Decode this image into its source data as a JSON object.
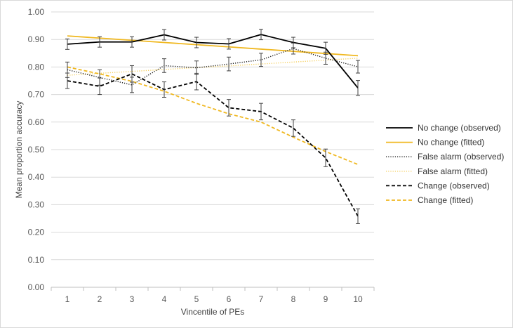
{
  "chart_data": {
    "type": "line",
    "title": "",
    "xlabel": "Vincentile of PEs",
    "ylabel": "Mean proportion accuracy",
    "x": [
      1,
      2,
      3,
      4,
      5,
      6,
      7,
      8,
      9,
      10
    ],
    "x_tick_labels": [
      "1",
      "2",
      "3",
      "4",
      "5",
      "6",
      "7",
      "8",
      "9",
      "10"
    ],
    "ylim": [
      0,
      1
    ],
    "y_ticks": [
      0,
      0.1,
      0.2,
      0.3,
      0.4,
      0.5,
      0.6,
      0.7,
      0.8,
      0.9,
      1.0
    ],
    "y_tick_labels": [
      "0.00",
      "0.10",
      "0.20",
      "0.30",
      "0.40",
      "0.50",
      "0.60",
      "0.70",
      "0.80",
      "0.90",
      "1.00"
    ],
    "grid": true,
    "legend_position": "right",
    "series": [
      {
        "name": "No change (observed)",
        "color": "#000000",
        "dash": "solid",
        "values": [
          0.883,
          0.891,
          0.891,
          0.917,
          0.889,
          0.884,
          0.918,
          0.889,
          0.868,
          0.724
        ],
        "errors": [
          0.019,
          0.019,
          0.019,
          0.019,
          0.019,
          0.019,
          0.019,
          0.019,
          0.022,
          0.027
        ]
      },
      {
        "name": "No change (fitted)",
        "color": "#f0b820",
        "dash": "solid",
        "values": [
          0.913,
          0.905,
          0.897,
          0.889,
          0.881,
          0.873,
          0.865,
          0.857,
          0.849,
          0.841
        ]
      },
      {
        "name": "False alarm (observed)",
        "color": "#1a1a1a",
        "dash": "dotted",
        "values": [
          0.79,
          0.762,
          0.735,
          0.805,
          0.797,
          0.811,
          0.826,
          0.867,
          0.832,
          0.801
        ],
        "errors": [
          0.028,
          0.028,
          0.028,
          0.025,
          0.025,
          0.025,
          0.024,
          0.02,
          0.022,
          0.023
        ]
      },
      {
        "name": "False alarm (fitted)",
        "color": "#f5d060",
        "dash": "dotted",
        "values": [
          0.77,
          0.777,
          0.784,
          0.791,
          0.798,
          0.804,
          0.811,
          0.818,
          0.825,
          0.832
        ]
      },
      {
        "name": "Change (observed)",
        "color": "#000000",
        "dash": "dashed",
        "values": [
          0.75,
          0.73,
          0.775,
          0.718,
          0.747,
          0.652,
          0.638,
          0.578,
          0.47,
          0.258
        ],
        "errors": [
          0.028,
          0.03,
          0.03,
          0.028,
          0.03,
          0.03,
          0.03,
          0.03,
          0.032,
          0.027
        ]
      },
      {
        "name": "Change (fitted)",
        "color": "#f0b820",
        "dash": "dashed",
        "values": [
          0.8,
          0.775,
          0.748,
          0.712,
          0.668,
          0.63,
          0.6,
          0.545,
          0.493,
          0.446
        ]
      }
    ]
  }
}
